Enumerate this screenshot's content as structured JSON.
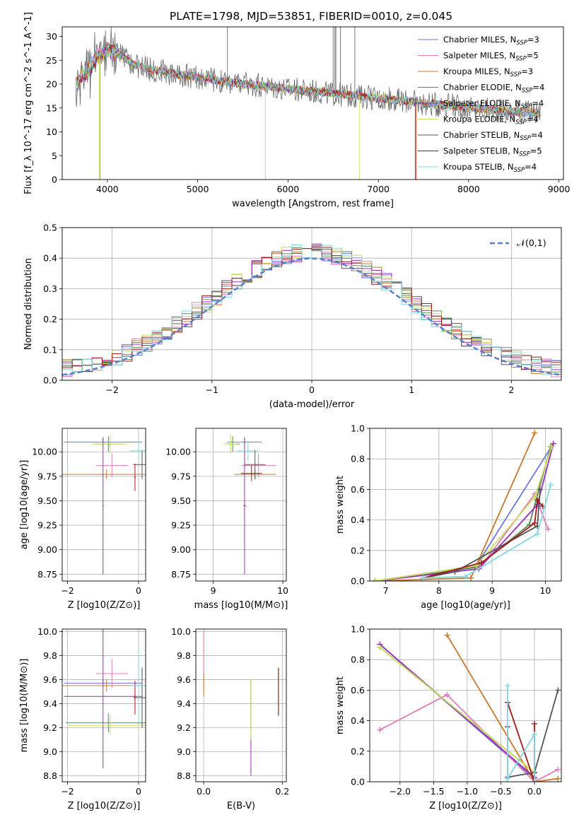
{
  "figure": {
    "title": "PLATE=1798, MJD=53851, FIBERID=0010, z=0.045"
  },
  "models": [
    {
      "name": "Chabrier MILES",
      "nssp": "3",
      "color": "#6f78d8"
    },
    {
      "name": "Salpeter MILES",
      "nssp": "5",
      "color": "#e57ab6"
    },
    {
      "name": "Kroupa MILES",
      "nssp": "3",
      "color": "#c8782c"
    },
    {
      "name": "Chabrier ELODIE",
      "nssp": "4",
      "color": "#5a8a5a"
    },
    {
      "name": "Salpeter ELODIE",
      "nssp": "4",
      "color": "#9a2fb8"
    },
    {
      "name": "Kroupa ELODIE",
      "nssp": "4",
      "color": "#c8e05a"
    },
    {
      "name": "Chabrier STELIB",
      "nssp": "4",
      "color": "#555555"
    },
    {
      "name": "Salpeter STELIB",
      "nssp": "5",
      "color": "#a01818"
    },
    {
      "name": "Kroupa STELIB",
      "nssp": "4",
      "color": "#7fd8e0"
    }
  ],
  "chart_data": [
    {
      "id": "spectrum",
      "type": "line",
      "title": "PLATE=1798, MJD=53851, FIBERID=0010, z=0.045",
      "xlabel": "wavelength [Angstrom, rest frame]",
      "ylabel": "Flux [f_λ 10^-17 erg cm^-2 s^-1 A^-1]",
      "xlim": [
        3500,
        9050
      ],
      "ylim": [
        0,
        32
      ],
      "xticks": [
        4000,
        5000,
        6000,
        7000,
        8000,
        9000
      ],
      "yticks": [
        0,
        5,
        10,
        15,
        20,
        25,
        30
      ],
      "grid": false,
      "legend": "top-right",
      "data_envelope": {
        "x": [
          3650,
          3700,
          3800,
          3900,
          4000,
          4100,
          4300,
          4500,
          4800,
          5000,
          5300,
          5500,
          5800,
          6000,
          6300,
          6500,
          6800,
          7000,
          7300,
          7500,
          7800,
          8000,
          8300,
          8500,
          8800
        ],
        "y": [
          19.5,
          21.5,
          23,
          26,
          27,
          26.5,
          24,
          23,
          22,
          21.5,
          20.5,
          20,
          19.5,
          19,
          18.5,
          18,
          17.5,
          17,
          16.5,
          16,
          15.5,
          15,
          14.5,
          14.2,
          14
        ]
      }
    },
    {
      "id": "residuals",
      "type": "histogram",
      "xlabel": "(data-model)/error",
      "ylabel": "Normed distribution",
      "xlim": [
        -2.5,
        2.5
      ],
      "ylim": [
        0,
        0.5
      ],
      "xticks": [
        -2,
        -1,
        0,
        1,
        2
      ],
      "yticks": [
        0.0,
        0.1,
        0.2,
        0.3,
        0.4,
        0.5
      ],
      "grid": true,
      "legend": "top-right",
      "reference_curve": {
        "name": "𝒩(0,1)",
        "mean": 0,
        "sigma": 1,
        "color": "#5b7fd0"
      }
    },
    {
      "id": "z_age",
      "type": "scatter",
      "xlabel": "Z [log10(Z/Z⊙)]",
      "ylabel": "age [log10(age/yr)]",
      "xlim": [
        -2.15,
        0.2
      ],
      "ylim": [
        8.68,
        10.24
      ],
      "xticks": [
        -2,
        0
      ],
      "yticks": [
        8.75,
        9.0,
        9.25,
        9.5,
        9.75,
        10.0
      ],
      "points": [
        {
          "m": 0,
          "x": -1.0,
          "y": 10.1,
          "xe": 1.1,
          "ye": 0.04
        },
        {
          "m": 1,
          "x": -0.75,
          "y": 9.86,
          "xe": 0.45,
          "ye": 0.12
        },
        {
          "m": 2,
          "x": -0.9,
          "y": 9.77,
          "xe": 1.25,
          "ye": 0.05
        },
        {
          "m": 3,
          "x": -0.85,
          "y": 10.08,
          "xe": 0.4,
          "ye": 0.08
        },
        {
          "m": 4,
          "x": -1.0,
          "y": 9.45,
          "xe": 0.02,
          "ye": 0.7
        },
        {
          "m": 5,
          "x": -0.8,
          "y": 10.08,
          "xe": 0.5,
          "ye": 0.1
        },
        {
          "m": 6,
          "x": 0.1,
          "y": 9.87,
          "xe": 0.25,
          "ye": 0.15
        },
        {
          "m": 7,
          "x": -0.1,
          "y": 9.74,
          "xe": 0.02,
          "ye": 0.14
        },
        {
          "m": 8,
          "x": 0.0,
          "y": 10.01,
          "xe": 0.25,
          "ye": 0.1
        }
      ]
    },
    {
      "id": "mass_age",
      "type": "scatter",
      "xlabel": "mass [log10(M/M⊙)]",
      "ylabel": "",
      "xlim": [
        8.75,
        10.05
      ],
      "ylim": [
        8.68,
        10.24
      ],
      "xticks": [
        9,
        10
      ],
      "yticks": [
        8.75,
        9.0,
        9.25,
        9.5,
        9.75,
        10.0
      ],
      "points": [
        {
          "m": 0,
          "x": 9.45,
          "y": 10.1,
          "xe": 0.25,
          "ye": 0.04
        },
        {
          "m": 1,
          "x": 9.65,
          "y": 9.86,
          "xe": 0.25,
          "ye": 0.12
        },
        {
          "m": 2,
          "x": 9.6,
          "y": 9.77,
          "xe": 0.3,
          "ye": 0.05
        },
        {
          "m": 3,
          "x": 9.28,
          "y": 10.08,
          "xe": 0.1,
          "ye": 0.08
        },
        {
          "m": 4,
          "x": 9.45,
          "y": 9.45,
          "xe": 0.02,
          "ye": 0.7
        },
        {
          "m": 5,
          "x": 9.25,
          "y": 10.08,
          "xe": 0.1,
          "ye": 0.1
        },
        {
          "m": 6,
          "x": 9.6,
          "y": 9.87,
          "xe": 0.15,
          "ye": 0.15
        },
        {
          "m": 7,
          "x": 9.55,
          "y": 9.78,
          "xe": 0.15,
          "ye": 0.08
        },
        {
          "m": 8,
          "x": 9.5,
          "y": 10.01,
          "xe": 0.15,
          "ye": 0.1
        }
      ]
    },
    {
      "id": "weight_age",
      "type": "line",
      "xlabel": "age [log10(age/yr)]",
      "ylabel": "mass weight",
      "xlim": [
        6.7,
        10.3
      ],
      "ylim": [
        0,
        1
      ],
      "xticks": [
        7,
        8,
        9,
        10
      ],
      "yticks": [
        0.0,
        0.2,
        0.4,
        0.6,
        0.8,
        1.0
      ],
      "grid": true,
      "series": [
        {
          "m": 0,
          "x": [
            6.8,
            8.7,
            10.15
          ],
          "y": [
            0.0,
            0.1,
            0.9
          ]
        },
        {
          "m": 1,
          "x": [
            6.8,
            8.8,
            9.8,
            10.05
          ],
          "y": [
            0.0,
            0.1,
            0.57,
            0.34
          ]
        },
        {
          "m": 2,
          "x": [
            6.8,
            8.6,
            9.8
          ],
          "y": [
            0.0,
            0.02,
            0.97
          ]
        },
        {
          "m": 3,
          "x": [
            6.8,
            8.7,
            9.7,
            10.1
          ],
          "y": [
            0.0,
            0.09,
            0.37,
            0.88
          ]
        },
        {
          "m": 4,
          "x": [
            6.8,
            8.75,
            9.85,
            10.15
          ],
          "y": [
            0.0,
            0.08,
            0.5,
            0.9
          ]
        },
        {
          "m": 5,
          "x": [
            6.8,
            8.7,
            9.8,
            10.12
          ],
          "y": [
            0.0,
            0.1,
            0.55,
            0.88
          ]
        },
        {
          "m": 6,
          "x": [
            7.7,
            8.3,
            9.85,
            9.9
          ],
          "y": [
            0.02,
            0.06,
            0.36,
            0.6
          ]
        },
        {
          "m": 7,
          "x": [
            7.7,
            8.8,
            9.8,
            9.85,
            9.95
          ],
          "y": [
            0.02,
            0.12,
            0.38,
            0.53,
            0.49
          ]
        },
        {
          "m": 8,
          "x": [
            7.7,
            8.5,
            9.85,
            10.1
          ],
          "y": [
            0.02,
            0.03,
            0.31,
            0.63
          ]
        }
      ]
    },
    {
      "id": "z_mass",
      "type": "scatter",
      "xlabel": "Z [log10(Z/Z⊙)]",
      "ylabel": "mass [log10(M/M⊙)]",
      "xlim": [
        -2.15,
        0.2
      ],
      "ylim": [
        8.75,
        10.02
      ],
      "xticks": [
        -2,
        0
      ],
      "yticks": [
        8.8,
        9.0,
        9.2,
        9.4,
        9.6,
        9.8,
        10.0
      ],
      "points": [
        {
          "m": 0,
          "x": -1.0,
          "y": 9.57,
          "xe": 1.1,
          "ye": 0.03
        },
        {
          "m": 1,
          "x": -0.75,
          "y": 9.65,
          "xe": 0.45,
          "ye": 0.12
        },
        {
          "m": 2,
          "x": -0.9,
          "y": 9.55,
          "xe": 1.25,
          "ye": 0.05
        },
        {
          "m": 3,
          "x": -0.85,
          "y": 9.24,
          "xe": 1.2,
          "ye": 0.08
        },
        {
          "m": 4,
          "x": -1.0,
          "y": 9.46,
          "xe": 1.1,
          "ye": 0.6
        },
        {
          "m": 5,
          "x": -0.8,
          "y": 9.22,
          "xe": 1.2,
          "ye": 0.08
        },
        {
          "m": 6,
          "x": 0.1,
          "y": 9.45,
          "xe": 0.25,
          "ye": 0.25
        },
        {
          "m": 7,
          "x": -0.1,
          "y": 9.45,
          "xe": 0.02,
          "ye": 0.14
        },
        {
          "m": 8,
          "x": 0.0,
          "y": 9.55,
          "xe": 0.25,
          "ye": 0.3
        }
      ]
    },
    {
      "id": "ebv_mass",
      "type": "scatter",
      "xlabel": "E(B-V)",
      "ylabel": "",
      "xlim": [
        -0.02,
        0.21
      ],
      "ylim": [
        8.75,
        10.02
      ],
      "xticks": [
        0.0,
        0.2
      ],
      "yticks": [
        8.8,
        9.0,
        9.2,
        9.4,
        9.6,
        9.8,
        10.0
      ],
      "points": [
        {
          "m": 1,
          "x": 0.0,
          "y": 9.75,
          "ye": 0.25
        },
        {
          "m": 2,
          "x": 0.0,
          "y": 9.56,
          "ye": 0.1
        },
        {
          "m": 3,
          "x": 0.12,
          "y": 9.4,
          "ye": 0.2
        },
        {
          "m": 4,
          "x": 0.12,
          "y": 9.2,
          "ye": 0.4
        },
        {
          "m": 5,
          "x": 0.12,
          "y": 9.35,
          "ye": 0.25
        },
        {
          "m": 6,
          "x": 0.19,
          "y": 9.5,
          "ye": 0.2
        },
        {
          "m": 7,
          "x": 0.19,
          "y": 9.5,
          "ye": 0.2
        },
        {
          "m": 8,
          "x": 0.2,
          "y": 9.4,
          "ye": 0.2
        }
      ]
    },
    {
      "id": "weight_z",
      "type": "line",
      "xlabel": "Z [log10(Z/Z⊙)]",
      "ylabel": "mass weight",
      "xlim": [
        -2.45,
        0.4
      ],
      "ylim": [
        0,
        1
      ],
      "xticks": [
        -2.0,
        -1.5,
        -1.0,
        -0.5,
        0.0
      ],
      "yticks": [
        0.0,
        0.2,
        0.4,
        0.6,
        0.8,
        1.0
      ],
      "grid": true,
      "series": [
        {
          "m": 0,
          "x": [
            -2.3,
            0.0
          ],
          "y": [
            0.9,
            0.02
          ]
        },
        {
          "m": 1,
          "x": [
            -2.3,
            -1.3,
            0.0,
            0.35
          ],
          "y": [
            0.34,
            0.57,
            0.0,
            0.08
          ]
        },
        {
          "m": 2,
          "x": [
            -1.3,
            0.0,
            0.35
          ],
          "y": [
            0.96,
            0.0,
            0.02
          ]
        },
        {
          "m": 3,
          "x": [
            -2.3,
            0.0
          ],
          "y": [
            0.88,
            0.06
          ]
        },
        {
          "m": 4,
          "x": [
            -2.3,
            0.0
          ],
          "y": [
            0.9,
            0.03
          ]
        },
        {
          "m": 5,
          "x": [
            -2.3,
            0.0
          ],
          "y": [
            0.88,
            0.06
          ]
        },
        {
          "m": 6,
          "x": [
            -0.4,
            -0.4,
            0.0,
            0.35
          ],
          "y": [
            0.36,
            0.03,
            0.06,
            0.6
          ]
        },
        {
          "m": 7,
          "x": [
            -0.4,
            0.0,
            0.0
          ],
          "y": [
            0.52,
            0.0,
            0.38
          ]
        },
        {
          "m": 8,
          "x": [
            -0.4,
            -0.4,
            0.0,
            0.0
          ],
          "y": [
            0.63,
            0.02,
            0.31,
            0.0
          ]
        }
      ]
    }
  ]
}
